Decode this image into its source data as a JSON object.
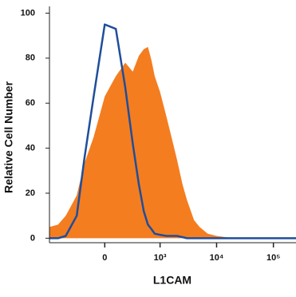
{
  "chart_data": {
    "type": "line",
    "xlabel": "L1CAM",
    "ylabel": "Relative Cell Number",
    "xscale": "biexponential",
    "x": [
      -1000,
      -700,
      -500,
      -300,
      -200,
      -100,
      0,
      100,
      200,
      300,
      400,
      500,
      600,
      700,
      800,
      1000,
      1300,
      1600,
      2000,
      2500,
      3000,
      4000,
      5000,
      7000,
      10000,
      20000,
      50000,
      100000,
      250000
    ],
    "series": [
      {
        "color": "#f47d20",
        "fill": true,
        "values": [
          5,
          6,
          10,
          19,
          33,
          45,
          63,
          72,
          78,
          74,
          81,
          84,
          85,
          79,
          72,
          65,
          54,
          45,
          35,
          24,
          17,
          8,
          5,
          2,
          1,
          0,
          0,
          0,
          0
        ]
      },
      {
        "color": "#1f4e9a",
        "fill": false,
        "values": [
          0,
          0,
          1,
          10,
          35,
          63,
          95,
          93,
          67,
          42,
          24,
          12,
          6,
          4,
          2,
          1.5,
          1,
          1,
          1,
          0.5,
          0,
          0,
          0,
          0,
          0,
          0,
          0,
          0,
          0
        ]
      }
    ],
    "xlim": [
      -1000,
      250000
    ],
    "xticks": [
      0,
      {
        "value": 1000,
        "label": "10³"
      },
      {
        "value": 10000,
        "label": "10⁴"
      },
      {
        "value": 100000,
        "label": "10⁵"
      }
    ],
    "ylim": [
      -2,
      103
    ],
    "yticks": [
      0,
      20,
      40,
      60,
      80,
      100
    ],
    "grid": false
  }
}
